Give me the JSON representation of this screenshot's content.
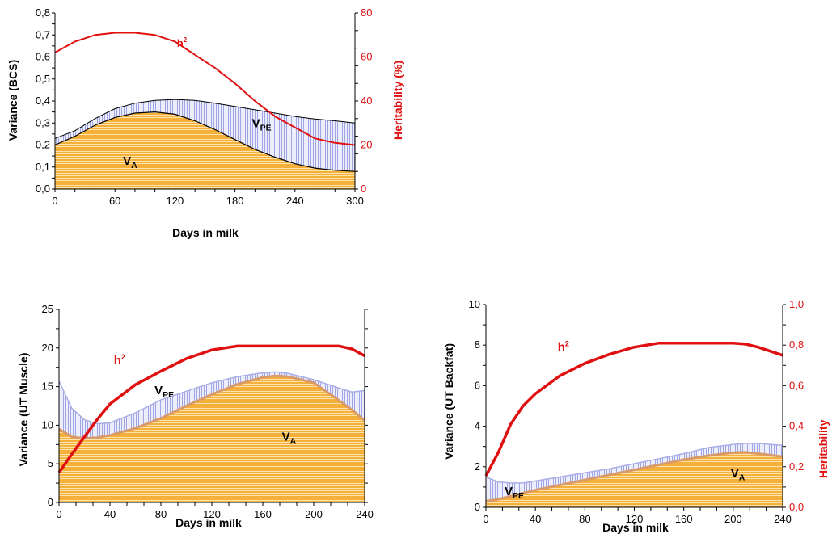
{
  "chart_data": [
    {
      "type": "area",
      "id": "bcs",
      "xlabel": "Days in milk",
      "ylabel": "Variance (BCS)",
      "y2label": "Heritability (%)",
      "xlim": [
        0,
        300
      ],
      "ylim": [
        0,
        0.8
      ],
      "y2lim": [
        0,
        80
      ],
      "xticks": [
        "0",
        "60",
        "120",
        "180",
        "240",
        "300"
      ],
      "xtick_values": [
        0,
        60,
        120,
        180,
        240,
        300
      ],
      "yticks": [
        "0,0",
        "0,1",
        "0,2",
        "0,3",
        "0,4",
        "0,5",
        "0,6",
        "0,7",
        "0,8"
      ],
      "ytick_values": [
        0,
        0.1,
        0.2,
        0.3,
        0.4,
        0.5,
        0.6,
        0.7,
        0.8
      ],
      "y2ticks": [
        "0",
        "20",
        "40",
        "60",
        "80"
      ],
      "y2tick_values": [
        0,
        20,
        40,
        60,
        80
      ],
      "x": [
        0,
        20,
        40,
        60,
        80,
        100,
        120,
        140,
        160,
        180,
        200,
        220,
        240,
        260,
        280,
        300
      ],
      "series": [
        {
          "name": "V",
          "sub": "A",
          "axis": "left",
          "values": [
            0.2,
            0.24,
            0.29,
            0.325,
            0.345,
            0.35,
            0.34,
            0.31,
            0.27,
            0.225,
            0.18,
            0.145,
            0.115,
            0.095,
            0.085,
            0.08
          ]
        },
        {
          "name": "V",
          "sub": "PE",
          "axis": "left",
          "values": [
            0.23,
            0.265,
            0.32,
            0.365,
            0.39,
            0.403,
            0.407,
            0.403,
            0.39,
            0.375,
            0.36,
            0.345,
            0.33,
            0.318,
            0.31,
            0.3
          ]
        },
        {
          "name": "h",
          "sup": "2",
          "axis": "right",
          "values": [
            62,
            67,
            70,
            71,
            71,
            70,
            67,
            61,
            55,
            48,
            40,
            33,
            28,
            23,
            21,
            20
          ]
        }
      ],
      "labels": [
        {
          "text": "V",
          "sub": "A",
          "x": 68,
          "y": 0.11
        },
        {
          "text": "V",
          "sub": "PE",
          "x": 197,
          "y": 0.28
        },
        {
          "text": "h",
          "sup": "2",
          "x": 122,
          "y": 0.645
        }
      ]
    },
    {
      "type": "area",
      "id": "muscle",
      "xlabel": "Days in milk",
      "ylabel": "Variance (UT Muscle)",
      "xlim": [
        0,
        240
      ],
      "ylim": [
        0,
        25
      ],
      "y2lim": [
        0,
        1
      ],
      "xticks": [
        "0",
        "40",
        "80",
        "120",
        "160",
        "200",
        "240"
      ],
      "xtick_values": [
        0,
        40,
        80,
        120,
        160,
        200,
        240
      ],
      "yticks": [
        "0",
        "5",
        "10",
        "15",
        "20",
        "25"
      ],
      "ytick_values": [
        0,
        5,
        10,
        15,
        20,
        25
      ],
      "x": [
        0,
        10,
        20,
        30,
        40,
        60,
        80,
        100,
        120,
        140,
        160,
        170,
        180,
        200,
        220,
        230,
        240
      ],
      "series": [
        {
          "name": "V",
          "sub": "A",
          "axis": "left",
          "values": [
            9.5,
            8.5,
            8.3,
            8.4,
            8.7,
            9.6,
            10.9,
            12.5,
            14.0,
            15.3,
            16.2,
            16.4,
            16.3,
            15.5,
            13.2,
            12.0,
            10.6
          ]
        },
        {
          "name": "V",
          "sub": "PE",
          "axis": "left",
          "values": [
            15.7,
            12.2,
            10.7,
            10.2,
            10.3,
            11.6,
            13.3,
            14.4,
            15.5,
            16.3,
            16.8,
            16.9,
            16.7,
            15.9,
            14.8,
            14.3,
            14.5
          ]
        },
        {
          "name": "h",
          "sup": "2",
          "axis": "right",
          "values": [
            0.155,
            0.25,
            0.34,
            0.43,
            0.51,
            0.61,
            0.68,
            0.745,
            0.79,
            0.81,
            0.81,
            0.81,
            0.81,
            0.81,
            0.81,
            0.795,
            0.76
          ]
        }
      ],
      "labels": [
        {
          "text": "V",
          "sub": "A",
          "x": 175,
          "y": 8.0
        },
        {
          "text": "V",
          "sub": "PE",
          "x": 75,
          "y": 14.0
        },
        {
          "text": "h",
          "sup": "2",
          "x": 43,
          "y": 17.9
        }
      ]
    },
    {
      "type": "area",
      "id": "backfat",
      "xlabel": "Days in milk",
      "ylabel": "Variance (UT Backfat)",
      "y2label": "Heritability",
      "xlim": [
        0,
        240
      ],
      "ylim": [
        0,
        10
      ],
      "y2lim": [
        0,
        1
      ],
      "xticks": [
        "0",
        "40",
        "80",
        "120",
        "160",
        "200",
        "240"
      ],
      "xtick_values": [
        0,
        40,
        80,
        120,
        160,
        200,
        240
      ],
      "yticks": [
        "0",
        "2",
        "4",
        "6",
        "8",
        "10"
      ],
      "ytick_values": [
        0,
        2,
        4,
        6,
        8,
        10
      ],
      "y2ticks": [
        "0,0",
        "0,2",
        "0,4",
        "0,6",
        "0,8",
        "1,0"
      ],
      "y2tick_values": [
        0,
        0.2,
        0.4,
        0.6,
        0.8,
        1.0
      ],
      "x": [
        0,
        10,
        20,
        30,
        40,
        60,
        80,
        100,
        120,
        140,
        160,
        180,
        200,
        210,
        220,
        240
      ],
      "series": [
        {
          "name": "V",
          "sub": "A",
          "axis": "left",
          "values": [
            0.3,
            0.4,
            0.55,
            0.7,
            0.85,
            1.1,
            1.35,
            1.6,
            1.85,
            2.1,
            2.35,
            2.55,
            2.7,
            2.72,
            2.65,
            2.5
          ]
        },
        {
          "name": "V",
          "sub": "PE",
          "axis": "left",
          "values": [
            1.5,
            1.25,
            1.2,
            1.2,
            1.3,
            1.5,
            1.7,
            1.9,
            2.15,
            2.4,
            2.65,
            2.95,
            3.1,
            3.15,
            3.15,
            3.05
          ]
        },
        {
          "name": "h",
          "sup": "2",
          "axis": "right",
          "values": [
            0.155,
            0.27,
            0.41,
            0.5,
            0.56,
            0.65,
            0.71,
            0.755,
            0.79,
            0.81,
            0.81,
            0.81,
            0.81,
            0.805,
            0.79,
            0.75
          ]
        }
      ],
      "labels": [
        {
          "text": "V",
          "sub": "A",
          "x": 198,
          "y": 1.5
        },
        {
          "text": "V",
          "sub": "PE",
          "x": 15,
          "y": 0.6
        },
        {
          "text": "h",
          "sup": "2",
          "x": 58,
          "y": 7.7
        }
      ]
    }
  ],
  "colors": {
    "va_fill": "#f5b03a",
    "va_stripe": "#fde3b0",
    "pe_fill": "#c3c6ef",
    "pe_stripe": "#eceefc",
    "h2_line": "#e01010",
    "axis": "#000000"
  }
}
